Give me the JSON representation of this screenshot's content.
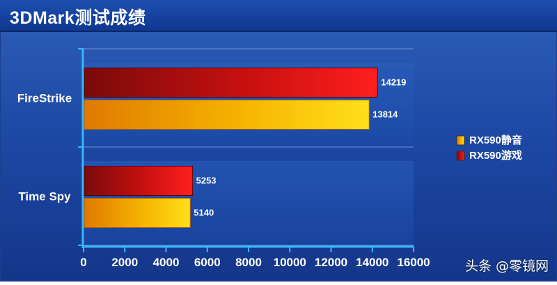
{
  "header": {
    "title": "3DMark测试成绩"
  },
  "watermark": "头条 @零镜网",
  "chart_data": {
    "type": "bar",
    "orientation": "horizontal",
    "categories": [
      "FireStrike",
      "Time Spy"
    ],
    "series": [
      {
        "name": "RX590游戏",
        "color": "#e01010",
        "values": [
          14219,
          5253
        ]
      },
      {
        "name": "RX590静音",
        "color": "#f5b800",
        "values": [
          13814,
          5140
        ]
      }
    ],
    "legend": [
      "RX590静音",
      "RX590游戏"
    ],
    "legend_placement": "right",
    "xlim": [
      0,
      16000
    ],
    "x_ticks": [
      "0",
      "2000",
      "4000",
      "6000",
      "8000",
      "10000",
      "12000",
      "14000",
      "16000"
    ],
    "grid": true
  }
}
